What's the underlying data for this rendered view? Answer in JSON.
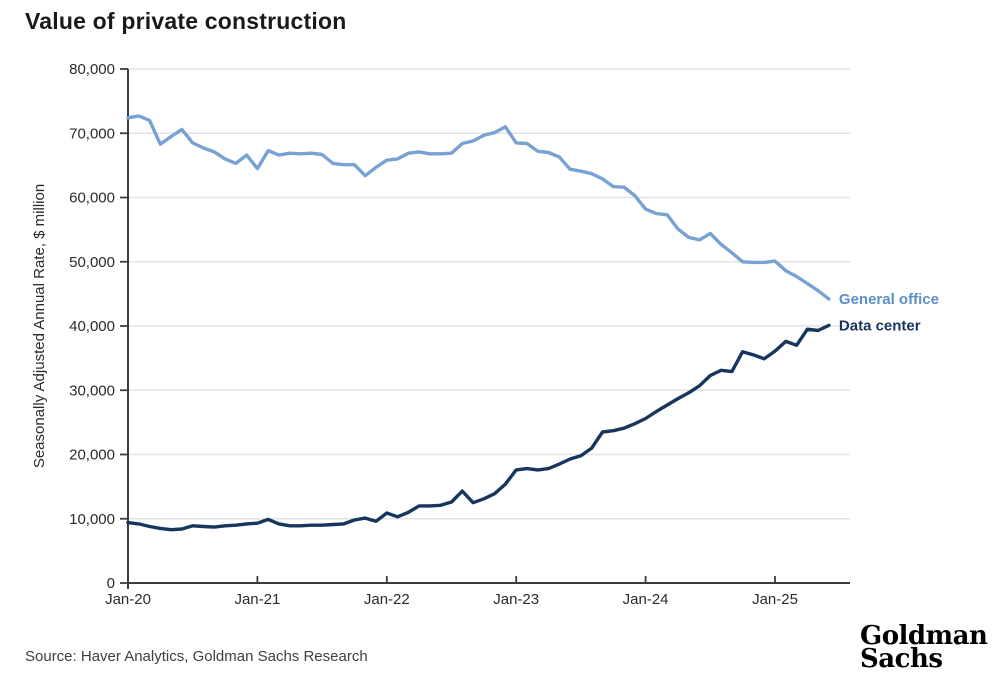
{
  "title": "Value of private construction",
  "source": "Source: Haver Analytics, Goldman Sachs Research",
  "logo": {
    "line1": "Goldman",
    "line2": "Sachs"
  },
  "colors": {
    "general_office_line": "#78A2D3",
    "general_office_label": "#5C8EC8",
    "data_center_line": "#17365E",
    "data_center_label": "#17365E",
    "axis": "#3c3c3c",
    "grid": "#e3e3e3",
    "tick_text": "#2b2b2b",
    "title_text": "#1a1a1a"
  },
  "chart_data": {
    "type": "line",
    "title": "Value of private construction",
    "xlabel": "",
    "ylabel": "Seasonally Adjusted Annual Rate, $ million",
    "ylim": [
      0,
      80000
    ],
    "ytick_interval": 10000,
    "ytick_labels": [
      "0",
      "10,000",
      "20,000",
      "30,000",
      "40,000",
      "50,000",
      "60,000",
      "70,000",
      "80,000"
    ],
    "xtick_labels": [
      "Jan-20",
      "Jan-21",
      "Jan-22",
      "Jan-23",
      "Jan-24",
      "Jan-25"
    ],
    "xtick_month_index": [
      0,
      12,
      24,
      36,
      48,
      60
    ],
    "x_frequency": "monthly, Jan-2020 through Jun-2025",
    "grid": "horizontal",
    "legend_position": "labels at right end of each line",
    "series": [
      {
        "name": "General office",
        "color": "#78A2D3",
        "label_color": "#5C8EC8",
        "values": [
          72400,
          72700,
          72000,
          68300,
          69500,
          70600,
          68500,
          67700,
          67100,
          66000,
          65300,
          66600,
          64500,
          67300,
          66600,
          66900,
          66800,
          66900,
          66700,
          65300,
          65100,
          65100,
          63400,
          64700,
          65800,
          66000,
          66900,
          67100,
          66800,
          66800,
          66900,
          68400,
          68800,
          69700,
          70100,
          71000,
          68500,
          68400,
          67200,
          67000,
          66300,
          64400,
          64100,
          63700,
          62900,
          61700,
          61600,
          60300,
          58200,
          57500,
          57300,
          55100,
          53800,
          53400,
          54400,
          52700,
          51400,
          50000,
          49900,
          49900,
          50100,
          48600,
          47700,
          46600,
          45500,
          44200
        ]
      },
      {
        "name": "Data center",
        "color": "#17365E",
        "label_color": "#17365E",
        "values": [
          9400,
          9200,
          8800,
          8500,
          8300,
          8400,
          8900,
          8800,
          8700,
          8900,
          9000,
          9200,
          9300,
          9900,
          9200,
          8900,
          8900,
          9000,
          9000,
          9100,
          9200,
          9800,
          10100,
          9600,
          10900,
          10300,
          11000,
          12000,
          12000,
          12100,
          12600,
          14300,
          12500,
          13100,
          13900,
          15400,
          17600,
          17800,
          17600,
          17800,
          18500,
          19300,
          19800,
          21000,
          23500,
          23700,
          24100,
          24800,
          25600,
          26700,
          27700,
          28700,
          29600,
          30700,
          32300,
          33100,
          32900,
          36000,
          35500,
          34900,
          36100,
          37600,
          37000,
          39500,
          39300,
          40100
        ]
      }
    ]
  }
}
